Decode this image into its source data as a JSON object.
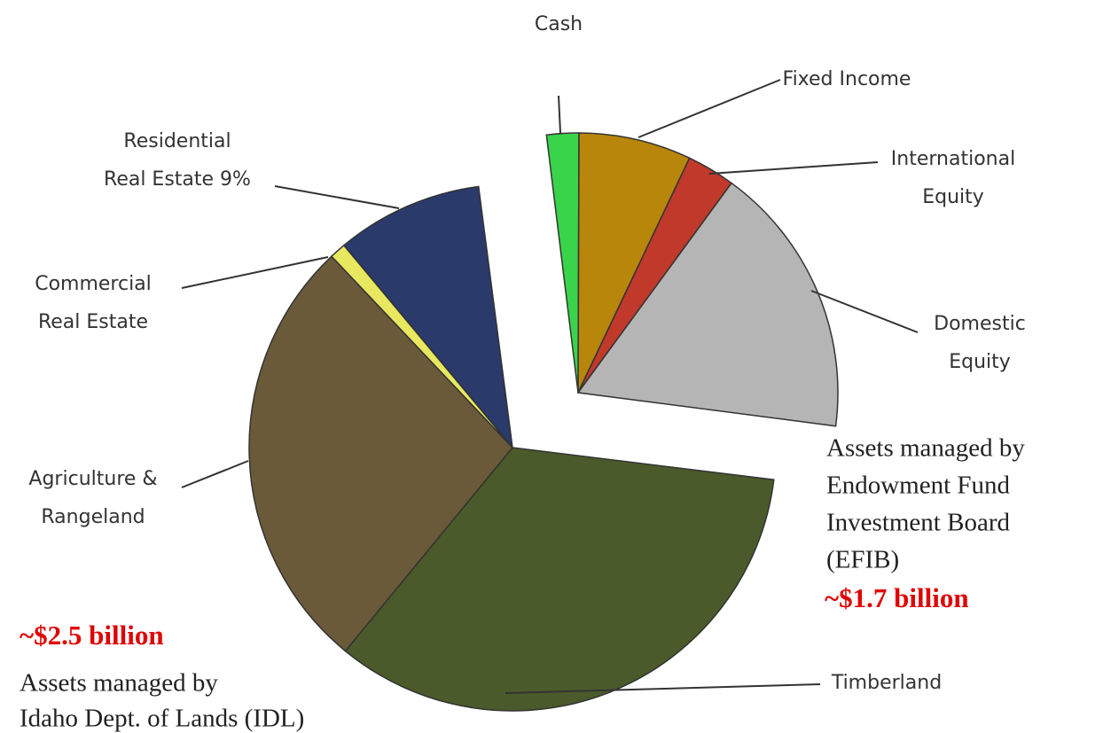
{
  "chart_data": {
    "type": "pie",
    "groups": [
      {
        "description": [
          "Assets managed by",
          "Endowment Fund",
          "Investment Board",
          "(EFIB)"
        ],
        "amount": "~$1.7 billion",
        "labels": [
          [
            "Cash"
          ],
          [
            "Fixed Income"
          ],
          [
            "International",
            "Equity"
          ],
          [
            "Domestic",
            "Equity"
          ]
        ],
        "values": [
          2,
          7,
          3,
          17
        ],
        "colors": [
          "#3ad44a",
          "#b8860b",
          "#c0392b",
          "#b5b5b5"
        ]
      },
      {
        "description": [
          "Assets managed by",
          "Idaho Dept. of Lands (IDL)"
        ],
        "amount": "~$2.5 billion",
        "labels": [
          [
            "Timberland"
          ],
          [
            "Agriculture &",
            "Rangeland"
          ],
          [
            "Commercial",
            "Real Estate"
          ],
          [
            "Residential",
            "Real Estate 9%"
          ]
        ],
        "values": [
          34,
          27,
          1,
          9
        ],
        "colors": [
          "#4a5a2a",
          "#6b5a3a",
          "#e8e860",
          "#2a3a6a"
        ]
      }
    ]
  }
}
